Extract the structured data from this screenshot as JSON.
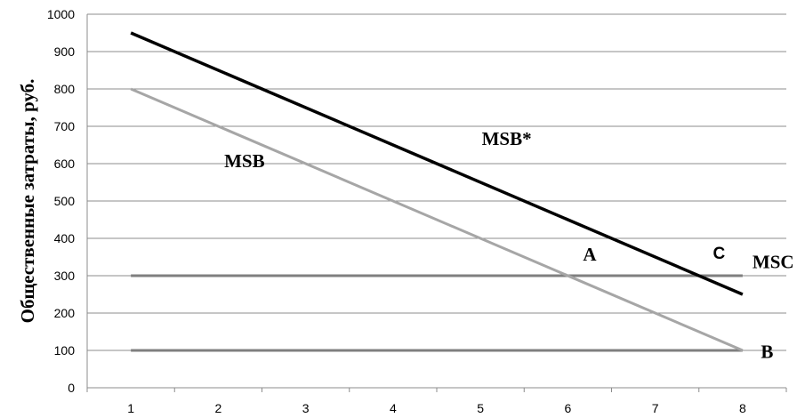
{
  "chart_data": {
    "type": "line",
    "ylabel": "Общественные затраты, руб.",
    "xlabel": "",
    "x": [
      1,
      2,
      3,
      4,
      5,
      6,
      7,
      8
    ],
    "xlim": [
      0.5,
      8.5
    ],
    "ylim": [
      0,
      1000
    ],
    "yticks": [
      0,
      100,
      200,
      300,
      400,
      500,
      600,
      700,
      800,
      900,
      1000
    ],
    "grid": "horizontal",
    "series": [
      {
        "name": "MSB*",
        "x": [
          1,
          8
        ],
        "y": [
          950,
          250
        ],
        "color": "#000000"
      },
      {
        "name": "MSB",
        "x": [
          1,
          8
        ],
        "y": [
          800,
          100
        ],
        "color": "#a6a6a6"
      },
      {
        "name": "MSC",
        "x": [
          1,
          8
        ],
        "y": [
          300,
          300
        ],
        "color": "#7f7f7f"
      },
      {
        "name": "",
        "x": [
          1,
          8
        ],
        "y": [
          100,
          100
        ],
        "color": "#7f7f7f"
      }
    ],
    "annotations": [
      {
        "text": "MSB*",
        "x": 5.3,
        "y": 650,
        "font": "serif"
      },
      {
        "text": "MSB",
        "x": 2.3,
        "y": 590,
        "font": "serif"
      },
      {
        "text": "A",
        "x": 6.25,
        "y": 340,
        "font": "serif"
      },
      {
        "text": "C",
        "x": 7.73,
        "y": 345,
        "font": "sans"
      },
      {
        "text": "MSC",
        "x": 8.35,
        "y": 320,
        "font": "serif"
      },
      {
        "text": "B",
        "x": 8.28,
        "y": 80,
        "font": "serif"
      }
    ]
  }
}
